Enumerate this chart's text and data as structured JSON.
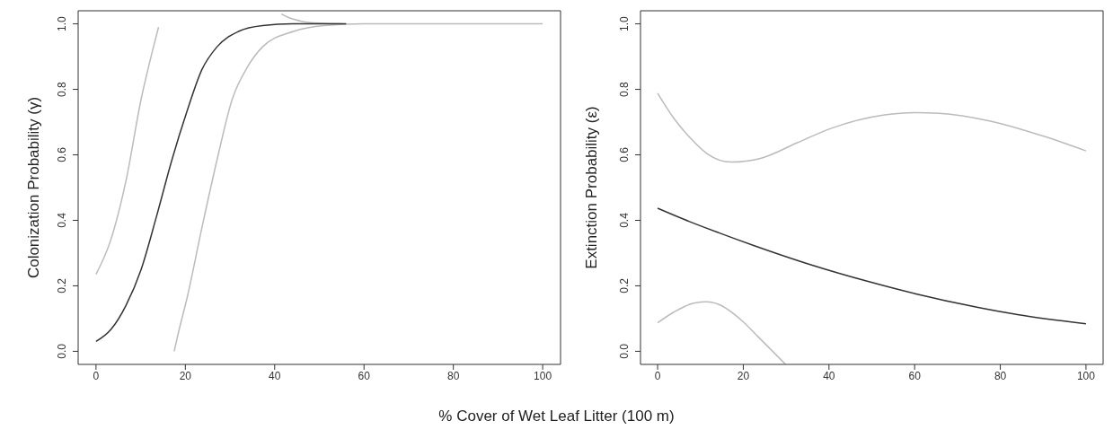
{
  "chart_data": [
    {
      "type": "line",
      "ylabel": "Colonization Probability (γ)",
      "xlabel": "% Cover of Wet Leaf Litter (100 m)",
      "xlim": [
        -4,
        104
      ],
      "ylim": [
        -0.04,
        1.04
      ],
      "xticks": [
        0,
        20,
        40,
        60,
        80,
        100
      ],
      "yticks": [
        {
          "value": 0,
          "label": "0.0"
        },
        {
          "value": 0.2,
          "label": "0.2"
        },
        {
          "value": 0.4,
          "label": "0.4"
        },
        {
          "value": 0.6,
          "label": "0.6"
        },
        {
          "value": 0.8,
          "label": "0.8"
        },
        {
          "value": 1,
          "label": "1.0"
        }
      ],
      "marker": "none",
      "line_style": "solid",
      "series": [
        {
          "color": "#bbbbbb",
          "x": [
            0,
            3.3,
            6.7,
            10.1,
            12.5,
            14,
            27,
            41.5,
            43,
            46,
            50,
            55
          ],
          "values": [
            0.235,
            0.34,
            0.52,
            0.77,
            0.91,
            0.99,
            null,
            1.03,
            1.02,
            1.008,
            1.002,
            1.0
          ]
        },
        {
          "color": "#bbbbbb",
          "x": [
            17.5,
            18.5,
            20.3,
            23.7,
            27.1,
            30.5,
            33.9,
            37.3,
            44.2,
            51,
            60,
            100
          ],
          "values": [
            0.0,
            0.06,
            0.158,
            0.377,
            0.585,
            0.77,
            0.868,
            0.93,
            0.977,
            0.995,
            1.0,
            1.0
          ]
        },
        {
          "color": "#333333",
          "x": [
            0,
            3.3,
            6.7,
            10.1,
            13.5,
            17,
            20.3,
            23.7,
            27.1,
            31.9,
            37.3,
            44,
            56
          ],
          "values": [
            0.03,
            0.066,
            0.14,
            0.25,
            0.41,
            0.585,
            0.73,
            0.86,
            0.93,
            0.977,
            0.995,
            1.0,
            1.0
          ]
        }
      ]
    },
    {
      "type": "line",
      "ylabel": "Extinction Probability (ε)",
      "xlim": [
        -4,
        104
      ],
      "ylim": [
        -0.04,
        1.04
      ],
      "xticks": [
        0,
        20,
        40,
        60,
        80,
        100
      ],
      "yticks": [
        {
          "value": 0,
          "label": "0.0"
        },
        {
          "value": 0.2,
          "label": "0.2"
        },
        {
          "value": 0.4,
          "label": "0.4"
        },
        {
          "value": 0.6,
          "label": "0.6"
        },
        {
          "value": 0.8,
          "label": "0.8"
        },
        {
          "value": 1,
          "label": "1.0"
        }
      ],
      "marker": "none",
      "line_style": "solid",
      "series": [
        {
          "color": "#bbbbbb",
          "x": [
            0,
            3.7,
            7.3,
            11.5,
            17.1,
            24.2,
            32.6,
            40.3,
            53,
            60.1,
            65.7,
            77.7,
            90.3,
            100
          ],
          "values": [
            0.788,
            0.713,
            0.656,
            0.604,
            0.578,
            0.59,
            0.637,
            0.68,
            0.722,
            0.729,
            0.727,
            0.703,
            0.656,
            0.612
          ]
        },
        {
          "color": "#bbbbbb",
          "x": [
            0,
            3.7,
            8.7,
            11.5,
            14.3,
            19.9,
            23.5,
            29.8
          ],
          "values": [
            0.087,
            0.119,
            0.148,
            0.151,
            0.143,
            0.091,
            0.044,
            -0.039
          ]
        },
        {
          "color": "#333333",
          "x": [
            0,
            7.3,
            14.3,
            22.7,
            36.1,
            49.5,
            60.1,
            74.8,
            84,
            100
          ],
          "values": [
            0.437,
            0.397,
            0.362,
            0.322,
            0.263,
            0.212,
            0.176,
            0.134,
            0.112,
            0.084
          ]
        }
      ]
    }
  ]
}
